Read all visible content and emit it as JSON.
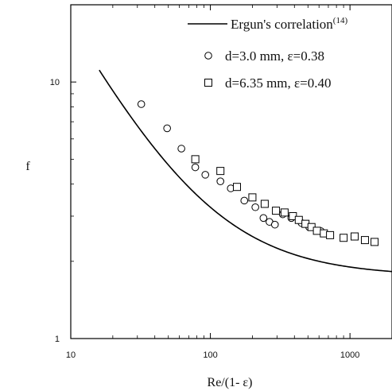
{
  "chart_data": {
    "type": "scatter",
    "xlabel": "Re/(1- ε)",
    "ylabel": "f",
    "xscale": "log",
    "yscale": "log",
    "xlim": [
      10,
      2000
    ],
    "ylim": [
      1,
      20
    ],
    "x_ticks": [
      {
        "value": 10,
        "label": "10"
      },
      {
        "value": 100,
        "label": "100"
      },
      {
        "value": 1000,
        "label": "1000"
      }
    ],
    "y_ticks": [
      {
        "value": 1,
        "label": "1"
      },
      {
        "value": 10,
        "label": "10"
      }
    ],
    "legend_position": "top-right",
    "series": [
      {
        "name": "Ergun's correlation",
        "name_superscript": "(14)",
        "kind": "line",
        "model": {
          "A": 150,
          "B": 1.75,
          "x_range": [
            16,
            2000
          ]
        }
      },
      {
        "name": "d=3.0 mm, ε=0.38",
        "kind": "scatter",
        "marker": "circle",
        "points": [
          [
            32,
            8.2
          ],
          [
            49,
            6.6
          ],
          [
            62,
            5.5
          ],
          [
            78,
            4.65
          ],
          [
            92,
            4.35
          ],
          [
            118,
            4.1
          ],
          [
            140,
            3.85
          ],
          [
            175,
            3.45
          ],
          [
            210,
            3.25
          ],
          [
            240,
            2.95
          ],
          [
            265,
            2.85
          ],
          [
            290,
            2.78
          ],
          [
            330,
            3.05
          ],
          [
            380,
            2.95
          ],
          [
            450,
            2.82
          ],
          [
            510,
            2.72
          ],
          [
            620,
            2.62
          ]
        ]
      },
      {
        "name": "d=6.35 mm, ε=0.40",
        "kind": "scatter",
        "marker": "square",
        "points": [
          [
            78,
            5.0
          ],
          [
            118,
            4.5
          ],
          [
            155,
            3.9
          ],
          [
            200,
            3.55
          ],
          [
            245,
            3.35
          ],
          [
            295,
            3.15
          ],
          [
            340,
            3.1
          ],
          [
            390,
            3.0
          ],
          [
            430,
            2.9
          ],
          [
            480,
            2.8
          ],
          [
            530,
            2.72
          ],
          [
            580,
            2.63
          ],
          [
            650,
            2.57
          ],
          [
            720,
            2.53
          ],
          [
            900,
            2.47
          ],
          [
            1080,
            2.5
          ],
          [
            1280,
            2.42
          ],
          [
            1500,
            2.38
          ]
        ]
      }
    ]
  }
}
